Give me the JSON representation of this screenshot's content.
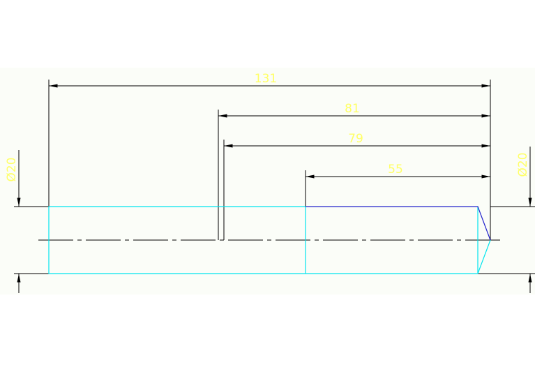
{
  "drawing": {
    "dimensions": {
      "overall_length": "131",
      "length_81": "81",
      "length_79": "79",
      "length_55": "55",
      "diameter_left": "Ø20",
      "diameter_right": "Ø20"
    },
    "colors": {
      "background": "#fbfdf8",
      "dimension_text": "#ffff66",
      "dimension_line": "#000000",
      "part_outline": "#00e5ee",
      "chamfer_edge": "#2222cc"
    }
  }
}
